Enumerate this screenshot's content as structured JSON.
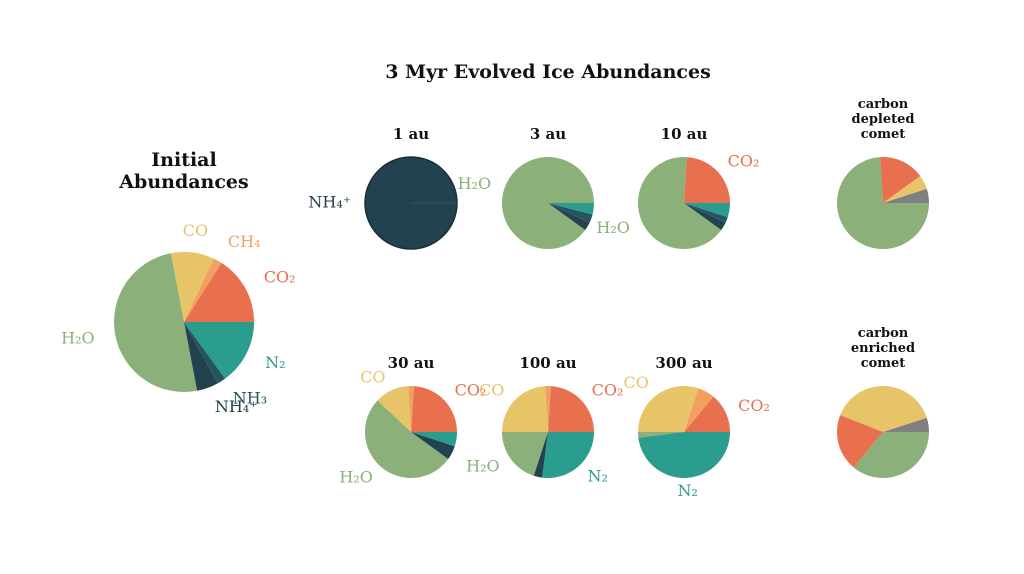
{
  "title": "3 Myr Evolved Ice Abundances",
  "chart_data": [
    {
      "type": "pie",
      "title": "Initial\nAbundances",
      "categories": [
        "CO₂",
        "CH₄",
        "CO",
        "H₂O",
        "NH₄⁺",
        "NH₃",
        "N₂"
      ],
      "values": [
        16,
        2,
        10,
        50,
        5,
        2,
        15
      ],
      "colors": [
        "#e8704f",
        "#f2a062",
        "#e8c469",
        "#8bb07a",
        "#23414f",
        "#26545f",
        "#2a9d8f"
      ]
    },
    {
      "type": "pie",
      "title": "1 au",
      "categories": [
        "NH₄⁺"
      ],
      "values": [
        100
      ],
      "colors": [
        "#23414f"
      ]
    },
    {
      "type": "pie",
      "title": "3 au",
      "categories": [
        "H₂O",
        null,
        null,
        null
      ],
      "values": [
        90,
        3,
        3,
        4
      ],
      "colors": [
        "#8bb07a",
        "#23414f",
        "#26545f",
        "#2a9d8f"
      ]
    },
    {
      "type": "pie",
      "title": "10 au",
      "categories": [
        "CO₂",
        "H₂O",
        null,
        null,
        null
      ],
      "values": [
        24,
        66,
        3,
        2,
        5
      ],
      "colors": [
        "#e8704f",
        "#8bb07a",
        "#23414f",
        "#26545f",
        "#2a9d8f"
      ]
    },
    {
      "type": "pie",
      "title": "carbon\ndepleted\ncomet",
      "categories": [
        null,
        null,
        null,
        null
      ],
      "values": [
        5,
        5,
        16,
        74
      ],
      "colors": [
        "#808080",
        "#e8c469",
        "#e8704f",
        "#8bb07a"
      ]
    },
    {
      "type": "pie",
      "title": "30 au",
      "categories": [
        "CO₂",
        null,
        "CO",
        "H₂O",
        null,
        null
      ],
      "values": [
        24,
        2,
        12,
        52,
        5,
        5
      ],
      "colors": [
        "#e8704f",
        "#f2a062",
        "#e8c469",
        "#8bb07a",
        "#23414f",
        "#2a9d8f"
      ]
    },
    {
      "type": "pie",
      "title": "100 au",
      "categories": [
        "CO₂",
        null,
        "CO",
        "H₂O",
        null,
        "N₂"
      ],
      "values": [
        24,
        2,
        24,
        20,
        3,
        27
      ],
      "colors": [
        "#e8704f",
        "#f2a062",
        "#e8c469",
        "#8bb07a",
        "#23414f",
        "#2a9d8f"
      ]
    },
    {
      "type": "pie",
      "title": "300 au",
      "categories": [
        "CO₂",
        null,
        "CO",
        null,
        "N₂"
      ],
      "values": [
        14,
        6,
        30,
        2,
        48
      ],
      "colors": [
        "#e8704f",
        "#f2a062",
        "#e8c469",
        "#8bb07a",
        "#2a9d8f"
      ]
    },
    {
      "type": "pie",
      "title": "carbon\nenriched\ncomet",
      "categories": [
        null,
        null,
        null,
        null
      ],
      "values": [
        5,
        39,
        20,
        36
      ],
      "colors": [
        "#808080",
        "#e8c469",
        "#e8704f",
        "#8bb07a"
      ]
    }
  ]
}
